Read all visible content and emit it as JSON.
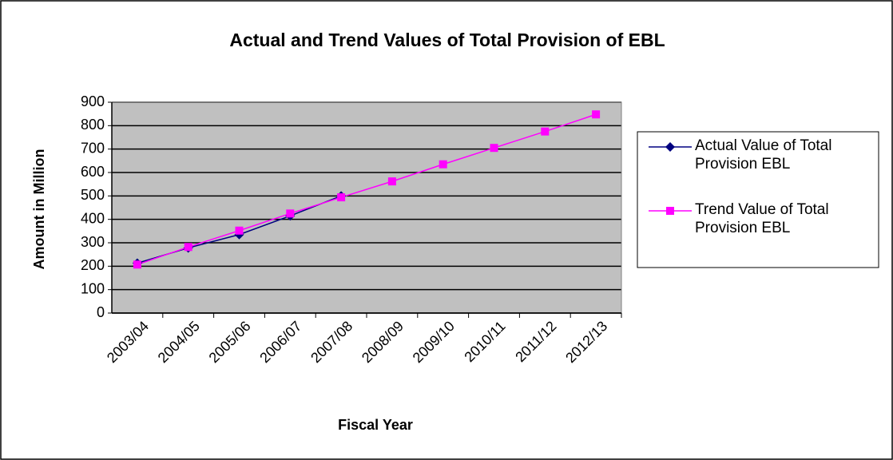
{
  "chart_data": {
    "type": "line",
    "title": "Actual and Trend Values of Total Provision of EBL",
    "x_label": "Fiscal Year",
    "y_label": "Amount in Million",
    "categories": [
      "2003/04",
      "2004/05",
      "2005/06",
      "2006/07",
      "2007/08",
      "2008/09",
      "2009/10",
      "2010/11",
      "2011/12",
      "2012/13"
    ],
    "series": [
      {
        "name": "Actual Value of Total Provision EBL",
        "color": "#000080",
        "marker": "diamond",
        "values": [
          213,
          278,
          335,
          415,
          500,
          null,
          null,
          null,
          null,
          null
        ]
      },
      {
        "name": "Trend Value of Total Provision EBL",
        "color": "#ff00ff",
        "marker": "square",
        "values": [
          207,
          282,
          352,
          425,
          494,
          562,
          635,
          705,
          775,
          848
        ]
      }
    ],
    "ylim": [
      0,
      900
    ],
    "yticks": [
      0,
      100,
      200,
      300,
      400,
      500,
      600,
      700,
      800,
      900
    ],
    "grid": true,
    "legend": "right"
  }
}
